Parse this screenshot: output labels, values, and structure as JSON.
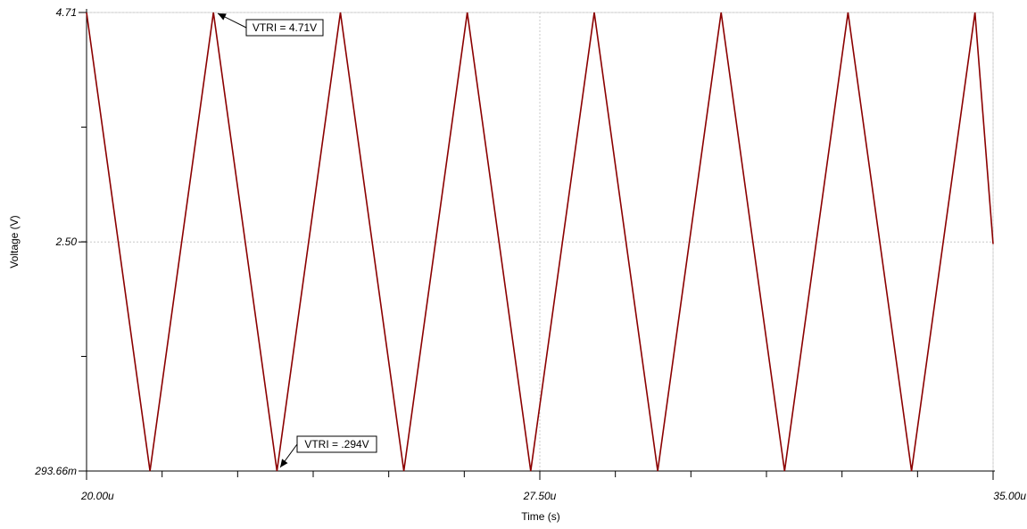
{
  "chart_data": {
    "type": "line",
    "xlabel": "Time (s)",
    "ylabel": "Voltage (V)",
    "xlim": [
      20.0,
      35.0
    ],
    "ylim": [
      0.29366,
      4.71
    ],
    "x_unit": "µs",
    "x_ticks": [
      {
        "value": 20.0,
        "label": "20.00u"
      },
      {
        "value": 27.5,
        "label": "27.50u"
      },
      {
        "value": 35.0,
        "label": "35.00u"
      }
    ],
    "y_ticks": [
      {
        "value": 4.71,
        "label": "4.71"
      },
      {
        "value": 2.5,
        "label": "2.50"
      },
      {
        "value": 0.29366,
        "label": "293.66m"
      }
    ],
    "grid": true,
    "series": [
      {
        "color": "#8b0000",
        "x": [
          20.0,
          21.05,
          22.1,
          23.15,
          24.2,
          25.25,
          26.3,
          27.35,
          28.4,
          29.45,
          30.5,
          31.55,
          32.6,
          33.65,
          34.7,
          35.0
        ],
        "y": [
          4.71,
          0.29366,
          4.71,
          0.29366,
          4.71,
          0.29366,
          4.71,
          0.29366,
          4.71,
          0.29366,
          4.71,
          0.29366,
          4.71,
          0.29366,
          4.71,
          2.48
        ]
      }
    ],
    "annotations": [
      {
        "text": "VTRI = 4.71V",
        "x": 22.1,
        "y": 4.71
      },
      {
        "text": "VTRI = .294V",
        "x": 23.15,
        "y": 0.29366
      }
    ]
  }
}
